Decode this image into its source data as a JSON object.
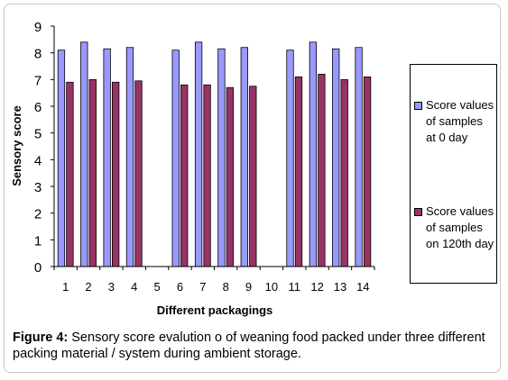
{
  "chart_data": {
    "type": "bar",
    "categories": [
      "1",
      "2",
      "3",
      "4",
      "5",
      "6",
      "7",
      "8",
      "9",
      "10",
      "11",
      "12",
      "13",
      "14"
    ],
    "series": [
      {
        "name": "Score values of samples at 0 day",
        "color": "#9999ff",
        "values": [
          8.1,
          8.4,
          8.15,
          8.2,
          null,
          8.1,
          8.4,
          8.15,
          8.2,
          null,
          8.1,
          8.4,
          8.15,
          8.2
        ]
      },
      {
        "name": "Score values of samples on 120th day",
        "color": "#993366",
        "values": [
          6.9,
          7.0,
          6.9,
          6.95,
          null,
          6.8,
          6.8,
          6.7,
          6.75,
          null,
          7.1,
          7.2,
          7.0,
          7.1
        ]
      }
    ],
    "xlabel": "Different packagings",
    "ylabel": "Sensory score",
    "ylim": [
      0,
      9
    ],
    "yticks": [
      "0",
      "1",
      "2",
      "3",
      "4",
      "5",
      "6",
      "7",
      "8",
      "9"
    ],
    "grid": false,
    "legend_position": "right"
  },
  "legend": {
    "items": [
      {
        "label": "Score values\nof samples\nat 0 day",
        "color": "#9999ff"
      },
      {
        "label": "Score values\nof samples\non 120th day",
        "color": "#993366"
      }
    ]
  },
  "caption": {
    "label": "Figure 4:",
    "text": " Sensory score evalution o of weaning food packed under three different packing material / system during  ambient  storage."
  }
}
